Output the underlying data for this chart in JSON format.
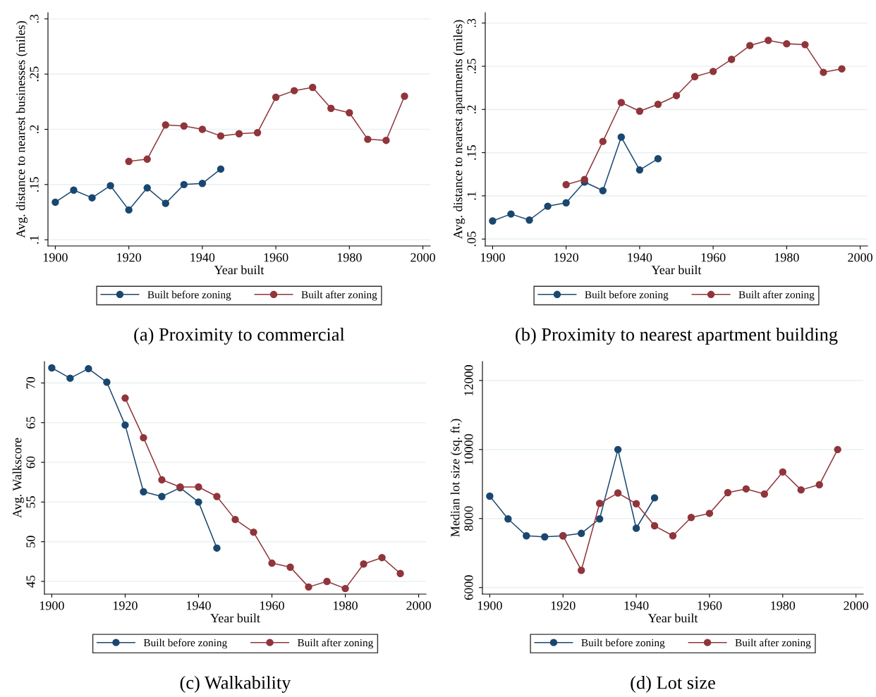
{
  "chart_data": [
    {
      "type": "line",
      "title": "(a) Proximity to commercial",
      "xlabel": "Year built",
      "ylabel": "Avg. distance to nearest businesses (miles)",
      "xlim": [
        1898,
        2002
      ],
      "xticks": [
        1900,
        1920,
        1940,
        1960,
        1980,
        2000
      ],
      "ylim": [
        0.0944,
        0.3056
      ],
      "yticks": [
        {
          "value": 0.1,
          "label": ".1"
        },
        {
          "value": 0.15,
          "label": ".15"
        },
        {
          "value": 0.2,
          "label": ".2"
        },
        {
          "value": 0.25,
          "label": ".25"
        },
        {
          "value": 0.3,
          "label": ".3"
        }
      ],
      "grid": "y",
      "legend": "bottom",
      "marker": "circle",
      "series": [
        {
          "name": "Built before zoning",
          "color": "#1a476f",
          "x": [
            1900,
            1905,
            1910,
            1915,
            1920,
            1925,
            1930,
            1935,
            1940,
            1945
          ],
          "values": [
            0.134,
            0.145,
            0.138,
            0.149,
            0.127,
            0.147,
            0.133,
            0.15,
            0.151,
            0.164
          ]
        },
        {
          "name": "Built after zoning",
          "color": "#90353b",
          "x": [
            1920,
            1925,
            1930,
            1935,
            1940,
            1945,
            1950,
            1955,
            1960,
            1965,
            1970,
            1975,
            1980,
            1985,
            1990,
            1995
          ],
          "values": [
            0.171,
            0.173,
            0.204,
            0.203,
            0.2,
            0.194,
            0.196,
            0.197,
            0.229,
            0.235,
            0.238,
            0.219,
            0.215,
            0.191,
            0.19,
            0.23
          ]
        }
      ]
    },
    {
      "type": "line",
      "title": "(b) Proximity to nearest apartment building",
      "xlabel": "Year built",
      "ylabel": "Avg. distance to nearest apartments (miles)",
      "xlim": [
        1898,
        2002
      ],
      "xticks": [
        1900,
        1920,
        1940,
        1960,
        1980,
        2000
      ],
      "ylim": [
        0.042,
        0.312
      ],
      "yticks": [
        {
          "value": 0.05,
          "label": ".05"
        },
        {
          "value": 0.1,
          "label": ".1"
        },
        {
          "value": 0.15,
          "label": ".15"
        },
        {
          "value": 0.2,
          "label": ".2"
        },
        {
          "value": 0.25,
          "label": ".25"
        },
        {
          "value": 0.3,
          "label": ".3"
        }
      ],
      "grid": "y",
      "legend": "bottom",
      "marker": "circle",
      "series": [
        {
          "name": "Built before zoning",
          "color": "#1a476f",
          "x": [
            1900,
            1905,
            1910,
            1915,
            1920,
            1925,
            1930,
            1935,
            1940,
            1945
          ],
          "values": [
            0.071,
            0.079,
            0.072,
            0.088,
            0.092,
            0.116,
            0.106,
            0.168,
            0.13,
            0.143
          ]
        },
        {
          "name": "Built after zoning",
          "color": "#90353b",
          "x": [
            1920,
            1925,
            1930,
            1935,
            1940,
            1945,
            1950,
            1955,
            1960,
            1965,
            1970,
            1975,
            1980,
            1985,
            1990,
            1995
          ],
          "values": [
            0.113,
            0.119,
            0.163,
            0.208,
            0.198,
            0.206,
            0.216,
            0.238,
            0.244,
            0.258,
            0.274,
            0.28,
            0.276,
            0.275,
            0.243,
            0.247
          ]
        }
      ]
    },
    {
      "type": "line",
      "title": "(c) Walkability",
      "xlabel": "Year built",
      "ylabel": "Avg. Walkscore",
      "xlim": [
        1898,
        2002
      ],
      "xticks": [
        1900,
        1920,
        1940,
        1960,
        1980,
        2000
      ],
      "ylim": [
        43.4,
        72.7
      ],
      "yticks": [
        45,
        50,
        55,
        60,
        65,
        70
      ],
      "grid": "y",
      "legend": "bottom",
      "marker": "circle",
      "series": [
        {
          "name": "Built before zoning",
          "color": "#1a476f",
          "x": [
            1900,
            1905,
            1910,
            1915,
            1920,
            1925,
            1930,
            1935,
            1940,
            1945
          ],
          "values": [
            71.9,
            70.6,
            71.8,
            70.1,
            64.7,
            56.3,
            55.7,
            56.8,
            55.0,
            49.2
          ]
        },
        {
          "name": "Built after zoning",
          "color": "#90353b",
          "x": [
            1920,
            1925,
            1930,
            1935,
            1940,
            1945,
            1950,
            1955,
            1960,
            1965,
            1970,
            1975,
            1980,
            1985,
            1990,
            1995
          ],
          "values": [
            68.1,
            63.1,
            57.8,
            56.9,
            56.9,
            55.7,
            52.8,
            51.2,
            47.3,
            46.8,
            44.3,
            45.0,
            44.1,
            47.2,
            48.0,
            46.0
          ]
        }
      ]
    },
    {
      "type": "line",
      "title": "(d) Lot size",
      "xlabel": "Year built",
      "ylabel": "Median lot size (sq. ft.)",
      "xlim": [
        1898,
        2002
      ],
      "xticks": [
        1900,
        1920,
        1940,
        1960,
        1980,
        2000
      ],
      "ylim": [
        5810,
        12550
      ],
      "yticks": [
        6000,
        8000,
        10000,
        12000
      ],
      "grid": "y",
      "legend": "bottom",
      "marker": "circle",
      "series": [
        {
          "name": "Built before zoning",
          "color": "#1a476f",
          "x": [
            1900,
            1905,
            1910,
            1915,
            1920,
            1925,
            1930,
            1935,
            1940,
            1945
          ],
          "values": [
            8650,
            7990,
            7500,
            7470,
            7500,
            7570,
            7990,
            10000,
            7720,
            8600
          ]
        },
        {
          "name": "Built after zoning",
          "color": "#90353b",
          "x": [
            1920,
            1925,
            1930,
            1935,
            1940,
            1945,
            1950,
            1955,
            1960,
            1965,
            1970,
            1975,
            1980,
            1985,
            1990,
            1995
          ],
          "values": [
            7500,
            6500,
            8440,
            8740,
            8430,
            7790,
            7500,
            8030,
            8150,
            8750,
            8860,
            8710,
            9350,
            8830,
            8980,
            10000
          ]
        }
      ]
    }
  ]
}
